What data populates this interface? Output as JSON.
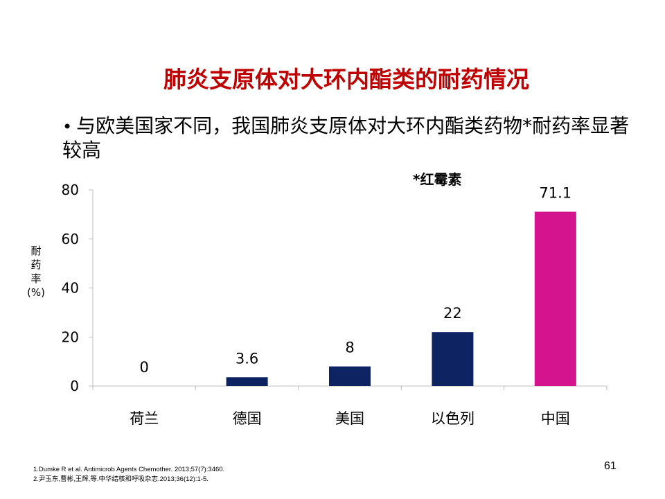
{
  "slide": {
    "title": "肺炎支原体对大环内酯类的耐药情况",
    "bullet": "与欧美国家不同，我国肺炎支原体对大环内酯类药物*耐药率显著较高",
    "note": "*红霉素",
    "page_number": "61",
    "references": [
      "1.Dumke R et al. Antimicrob Agents Chemother. 2013;57(7):3460.",
      "2.尹玉东,曹彬,王辉,等.中华结核和呼吸杂志.2013;36(12):1-5."
    ]
  },
  "chart_data": {
    "type": "bar",
    "categories": [
      "荷兰",
      "德国",
      "美国",
      "以色列",
      "中国"
    ],
    "values": [
      0,
      3.6,
      8,
      22,
      71.1
    ],
    "data_labels": [
      "0",
      "3.6",
      "8",
      "22",
      "71.1"
    ],
    "ylabel": "耐药率(%)",
    "ylabel_lines": [
      "耐",
      "药",
      "率",
      "(%)"
    ],
    "ylim": [
      0,
      80
    ],
    "yticks": [
      0,
      20,
      40,
      60,
      80
    ],
    "grid": false,
    "legend": "none",
    "colors": [
      "#0e2462",
      "#0e2462",
      "#0e2462",
      "#0e2462",
      "#d4148e"
    ],
    "axis_color": "#bfbfbf"
  }
}
